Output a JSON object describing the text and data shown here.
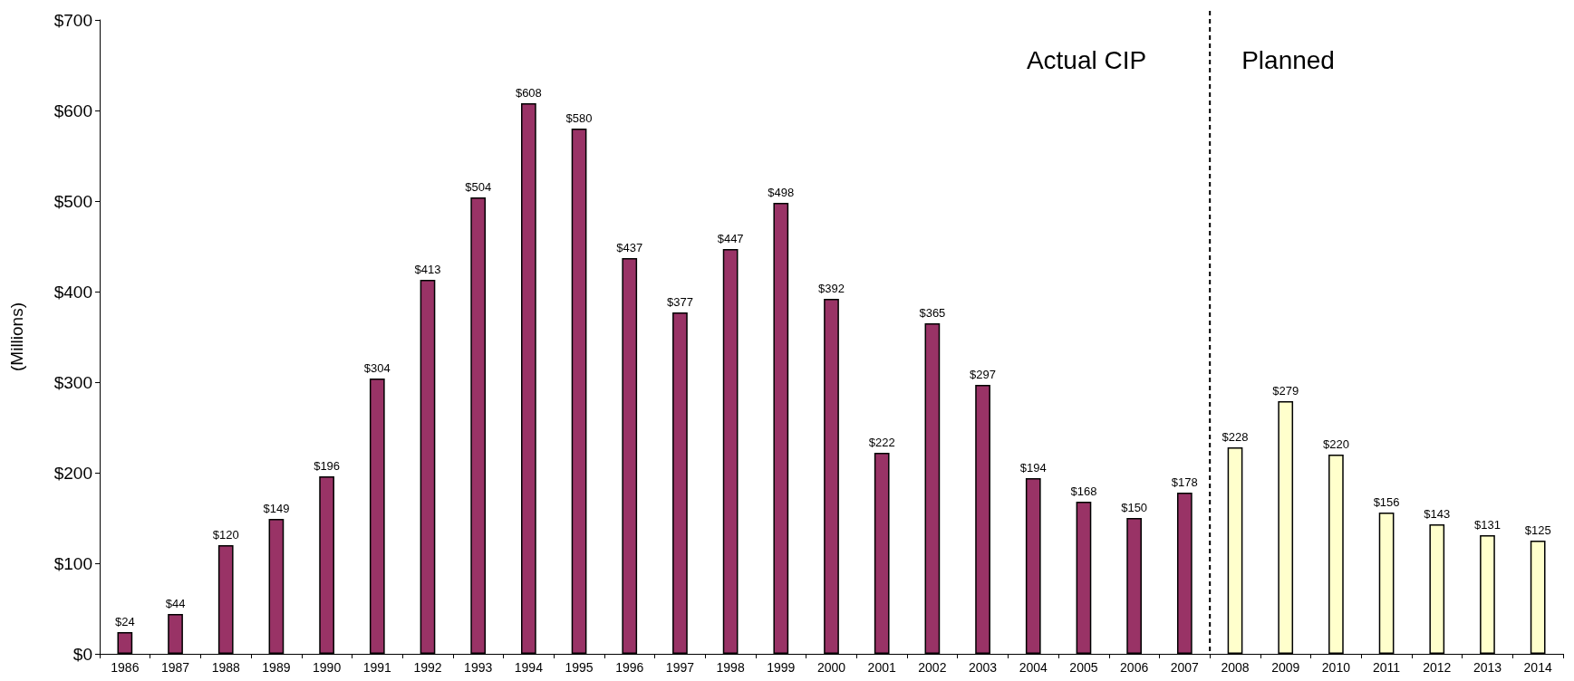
{
  "chart_data": {
    "type": "bar",
    "ylabel": "(Millions)",
    "categories": [
      "1986",
      "1987",
      "1988",
      "1989",
      "1990",
      "1991",
      "1992",
      "1993",
      "1994",
      "1995",
      "1996",
      "1997",
      "1998",
      "1999",
      "2000",
      "2001",
      "2002",
      "2003",
      "2004",
      "2005",
      "2006",
      "2007",
      "2008",
      "2009",
      "2010",
      "2011",
      "2012",
      "2013",
      "2014"
    ],
    "series": [
      {
        "color": "#993366",
        "values": [
          24,
          44,
          120,
          149,
          196,
          304,
          413,
          504,
          608,
          580,
          437,
          377,
          447,
          498,
          392,
          222,
          365,
          297,
          194,
          168,
          150,
          178,
          null,
          null,
          null,
          null,
          null,
          null,
          null
        ],
        "value_labels": [
          "$24",
          "$44",
          "$120",
          "$149",
          "$196",
          "$304",
          "$413",
          "$504",
          "$608",
          "$580",
          "$437",
          "$377",
          "$447",
          "$498",
          "$392",
          "$222",
          "$365",
          "$297",
          "$194",
          "$168",
          "$150",
          "$178",
          null,
          null,
          null,
          null,
          null,
          null,
          null
        ]
      },
      {
        "color": "#ffffcc",
        "values": [
          null,
          null,
          null,
          null,
          null,
          null,
          null,
          null,
          null,
          null,
          null,
          null,
          null,
          null,
          null,
          null,
          null,
          null,
          null,
          null,
          null,
          null,
          228,
          279,
          220,
          156,
          143,
          131,
          125
        ],
        "value_labels": [
          null,
          null,
          null,
          null,
          null,
          null,
          null,
          null,
          null,
          null,
          null,
          null,
          null,
          null,
          null,
          null,
          null,
          null,
          null,
          null,
          null,
          null,
          "$228",
          "$279",
          "$220",
          "$156",
          "$143",
          "$131",
          "$125"
        ]
      }
    ],
    "ylim": [
      0,
      700
    ],
    "yticks": [
      {
        "value": 0,
        "label": "$0"
      },
      {
        "value": 100,
        "label": "$100"
      },
      {
        "value": 200,
        "label": "$200"
      },
      {
        "value": 300,
        "label": "$300"
      },
      {
        "value": 400,
        "label": "$400"
      },
      {
        "value": 500,
        "label": "$500"
      },
      {
        "value": 600,
        "label": "$600"
      },
      {
        "value": 700,
        "label": "$700"
      }
    ],
    "annotations": [
      "Actual CIP",
      "Planned"
    ]
  }
}
